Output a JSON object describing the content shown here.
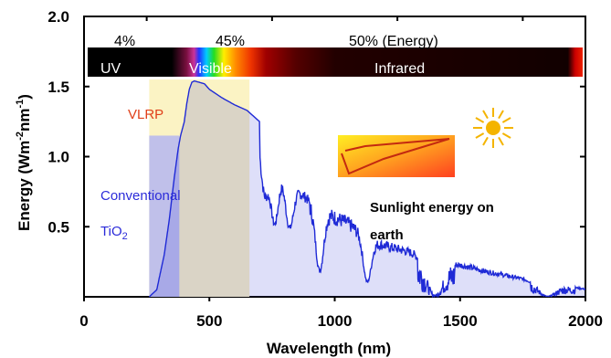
{
  "chart_data": {
    "type": "area",
    "title": "",
    "xlabel": "Wavelength (nm)",
    "ylabel_main": "Energy (Wm",
    "ylabel_sup1": "-2",
    "ylabel_mid": "nm",
    "ylabel_sup2": "-1",
    "ylabel_end": ")",
    "xlim": [
      0,
      2000
    ],
    "ylim": [
      0,
      2.0
    ],
    "x_ticks": [
      0,
      500,
      1000,
      1500,
      2000
    ],
    "x_tick_labels": [
      "0",
      "500",
      "1000",
      "1500",
      "2000"
    ],
    "y_ticks": [
      0.5,
      1.0,
      1.5,
      2.0
    ],
    "y_tick_labels": [
      "0.5",
      "1.0",
      "1.5",
      "2.0"
    ],
    "series_color": "#1f2ad6",
    "spectrum": {
      "x": [
        260,
        290,
        320,
        340,
        360,
        375,
        385,
        400,
        410,
        420,
        430,
        440,
        460,
        480,
        500,
        550,
        600,
        650,
        700,
        720,
        760,
        800,
        850,
        900,
        940,
        1000,
        1050,
        1100,
        1150,
        1200,
        1300,
        1400,
        1500,
        1600,
        1700,
        1800,
        1900,
        2000
      ],
      "y": [
        0.0,
        0.05,
        0.3,
        0.55,
        0.85,
        1.05,
        1.15,
        1.25,
        1.38,
        1.48,
        1.53,
        1.54,
        1.53,
        1.52,
        1.48,
        1.42,
        1.37,
        1.33,
        1.25,
        1.1,
        1.0,
        0.9,
        0.8,
        0.72,
        0.68,
        0.62,
        0.58,
        0.5,
        0.43,
        0.4,
        0.35,
        0.3,
        0.25,
        0.2,
        0.16,
        0.12,
        0.09,
        0.06
      ]
    },
    "absorption_bands": [
      {
        "center": 720,
        "depth": 0.3
      },
      {
        "center": 760,
        "depth": 0.45
      },
      {
        "center": 820,
        "depth": 0.4
      },
      {
        "center": 940,
        "depth": 0.7
      },
      {
        "center": 1130,
        "depth": 0.75
      },
      {
        "center": 1400,
        "depth": 0.95
      },
      {
        "center": 1850,
        "depth": 0.95
      }
    ],
    "regions": [
      {
        "name": "conventional",
        "x0": 260,
        "x1": 380,
        "y_top": 1.15,
        "color": "#b9baee"
      },
      {
        "name": "vlrp",
        "x0": 260,
        "x1": 660,
        "y_top": 1.55,
        "color": "#fbf3c4"
      }
    ],
    "band_labels": {
      "uv": "UV",
      "visible": "Visible",
      "infrared": "Infrared"
    },
    "percent_labels": {
      "uv": "4%",
      "visible": "45%",
      "infrared": "50% (Energy)"
    },
    "annotations": {
      "vlrp": "VLRP",
      "conventional": "Conventional",
      "tio2_main": "TiO",
      "tio2_sub": "2",
      "sunlight": "Sunlight energy on earth"
    },
    "colors": {
      "vlrp_text": "#e0401a",
      "conventional_text": "#2b2bd9",
      "sun": "#f4b400"
    }
  }
}
